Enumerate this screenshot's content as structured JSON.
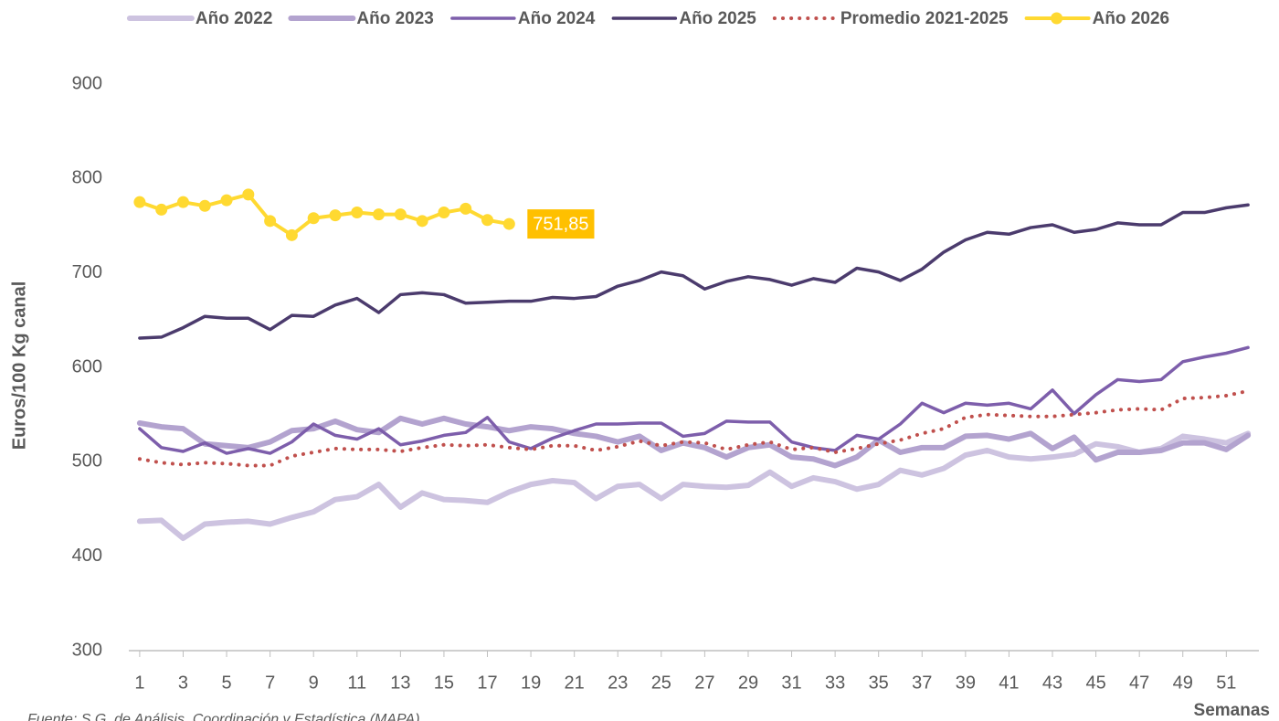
{
  "chart_data": {
    "type": "line",
    "y_label": "Euros/100 Kg canal",
    "x_label": "Semanas",
    "source": "Fuente: S.G. de Análisis, Coordinación y Estadística (MAPA)",
    "x": [
      1,
      2,
      3,
      4,
      5,
      6,
      7,
      8,
      9,
      10,
      11,
      12,
      13,
      14,
      15,
      16,
      17,
      18,
      19,
      20,
      21,
      22,
      23,
      24,
      25,
      26,
      27,
      28,
      29,
      30,
      31,
      32,
      33,
      34,
      35,
      36,
      37,
      38,
      39,
      40,
      41,
      42,
      43,
      44,
      45,
      46,
      47,
      48,
      49,
      50,
      51,
      52
    ],
    "xlim": [
      0.5,
      52.5
    ],
    "xticks": [
      1,
      3,
      5,
      7,
      9,
      11,
      13,
      15,
      17,
      19,
      21,
      23,
      25,
      27,
      29,
      31,
      33,
      35,
      37,
      39,
      41,
      43,
      45,
      47,
      49,
      51
    ],
    "ylim": [
      300,
      900
    ],
    "yticks": [
      300,
      400,
      500,
      600,
      700,
      800,
      900
    ],
    "grid": false,
    "legend": "top",
    "series": [
      {
        "name": "Año 2022",
        "color": "#cdc3e0",
        "style": "thick",
        "values": [
          437,
          438,
          419,
          434,
          436,
          437,
          434,
          441,
          447,
          460,
          463,
          476,
          452,
          467,
          460,
          459,
          457,
          468,
          476,
          480,
          478,
          461,
          474,
          476,
          461,
          476,
          474,
          473,
          475,
          489,
          474,
          483,
          479,
          471,
          476,
          491,
          486,
          493,
          507,
          512,
          505,
          503,
          505,
          508,
          519,
          516,
          510,
          514,
          527,
          524,
          520,
          530
        ]
      },
      {
        "name": "Año 2023",
        "color": "#b3a3cf",
        "style": "thick",
        "values": [
          541,
          537,
          535,
          519,
          517,
          515,
          521,
          533,
          535,
          543,
          534,
          531,
          546,
          540,
          546,
          540,
          537,
          533,
          537,
          535,
          530,
          527,
          521,
          527,
          512,
          520,
          515,
          505,
          515,
          518,
          505,
          503,
          496,
          505,
          523,
          510,
          515,
          515,
          527,
          528,
          524,
          530,
          514,
          526,
          502,
          510,
          510,
          512,
          520,
          520,
          513,
          528
        ]
      },
      {
        "name": "Año 2024",
        "color": "#7d5eab",
        "style": "solid",
        "values": [
          535,
          515,
          511,
          520,
          509,
          514,
          509,
          521,
          540,
          528,
          524,
          535,
          518,
          522,
          528,
          531,
          547,
          521,
          514,
          525,
          533,
          540,
          540,
          541,
          541,
          527,
          530,
          543,
          542,
          542,
          521,
          515,
          512,
          528,
          524,
          540,
          562,
          552,
          562,
          560,
          562,
          556,
          576,
          551,
          571,
          587,
          585,
          587,
          606,
          611,
          615,
          621
        ]
      },
      {
        "name": "Año 2025",
        "color": "#4b3b6d",
        "style": "solid",
        "values": [
          631,
          632,
          642,
          654,
          652,
          652,
          640,
          655,
          654,
          666,
          673,
          658,
          677,
          679,
          677,
          668,
          669,
          670,
          670,
          674,
          673,
          675,
          686,
          692,
          701,
          697,
          683,
          691,
          696,
          693,
          687,
          694,
          690,
          705,
          701,
          692,
          704,
          722,
          735,
          743,
          741,
          748,
          751,
          743,
          746,
          753,
          751,
          751,
          764,
          764,
          769,
          772
        ]
      },
      {
        "name": "Promedio 2021-2025",
        "color": "#c0504d",
        "style": "dotted",
        "values": [
          503,
          499,
          497,
          499,
          498,
          496,
          496,
          506,
          510,
          514,
          513,
          513,
          511,
          515,
          518,
          517,
          518,
          515,
          513,
          517,
          517,
          512,
          516,
          522,
          517,
          521,
          520,
          513,
          518,
          521,
          513,
          515,
          510,
          514,
          519,
          523,
          530,
          535,
          547,
          550,
          549,
          548,
          548,
          550,
          552,
          555,
          556,
          555,
          567,
          568,
          570,
          575
        ]
      },
      {
        "name": "Año 2026",
        "color": "#ffd931",
        "style": "markers",
        "label_color": "#ffc000",
        "values": [
          775,
          767,
          775,
          771,
          777,
          783,
          755,
          740,
          758,
          761,
          764,
          762,
          762,
          755,
          764,
          768,
          756,
          751.85,
          null,
          null,
          null,
          null,
          null,
          null,
          null,
          null,
          null,
          null,
          null,
          null,
          null,
          null,
          null,
          null,
          null,
          null,
          null,
          null,
          null,
          null,
          null,
          null,
          null,
          null,
          null,
          null,
          null,
          null,
          null,
          null,
          null,
          null
        ],
        "value_labels": [
          null,
          null,
          null,
          null,
          null,
          null,
          null,
          null,
          null,
          null,
          null,
          null,
          null,
          null,
          null,
          null,
          null,
          "751,85",
          null,
          null,
          null,
          null,
          null,
          null,
          null,
          null,
          null,
          null,
          null,
          null,
          null,
          null,
          null,
          null,
          null,
          null,
          null,
          null,
          null,
          null,
          null,
          null,
          null,
          null,
          null,
          null,
          null,
          null,
          null,
          null,
          null,
          null
        ]
      }
    ]
  }
}
